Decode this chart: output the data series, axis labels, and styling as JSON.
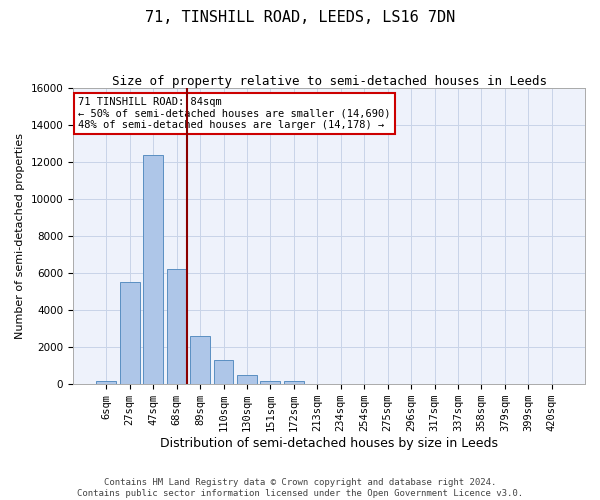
{
  "title": "71, TINSHILL ROAD, LEEDS, LS16 7DN",
  "subtitle": "Size of property relative to semi-detached houses in Leeds",
  "xlabel": "Distribution of semi-detached houses by size in Leeds",
  "ylabel": "Number of semi-detached properties",
  "footer_line1": "Contains HM Land Registry data © Crown copyright and database right 2024.",
  "footer_line2": "Contains public sector information licensed under the Open Government Licence v3.0.",
  "bar_labels": [
    "6sqm",
    "27sqm",
    "47sqm",
    "68sqm",
    "89sqm",
    "110sqm",
    "130sqm",
    "151sqm",
    "172sqm",
    "213sqm",
    "234sqm",
    "254sqm",
    "275sqm",
    "296sqm",
    "317sqm",
    "337sqm",
    "358sqm",
    "379sqm",
    "399sqm",
    "420sqm"
  ],
  "bar_values": [
    200,
    5500,
    12400,
    6200,
    2600,
    1300,
    500,
    200,
    150,
    0,
    0,
    0,
    0,
    0,
    0,
    0,
    0,
    0,
    0,
    0
  ],
  "bar_color": "#aec6e8",
  "bar_edge_color": "#5a8fc2",
  "vline_color": "#8b0000",
  "vline_x": 3.45,
  "ylim": [
    0,
    16000
  ],
  "yticks": [
    0,
    2000,
    4000,
    6000,
    8000,
    10000,
    12000,
    14000,
    16000
  ],
  "annotation_title": "71 TINSHILL ROAD: 84sqm",
  "annotation_line1": "← 50% of semi-detached houses are smaller (14,690)",
  "annotation_line2": "48% of semi-detached houses are larger (14,178) →",
  "background_color": "#eef2fb",
  "grid_color": "#c8d4e8",
  "title_fontsize": 11,
  "subtitle_fontsize": 9,
  "ylabel_fontsize": 8,
  "xlabel_fontsize": 9,
  "tick_fontsize": 7.5,
  "footer_fontsize": 6.5
}
